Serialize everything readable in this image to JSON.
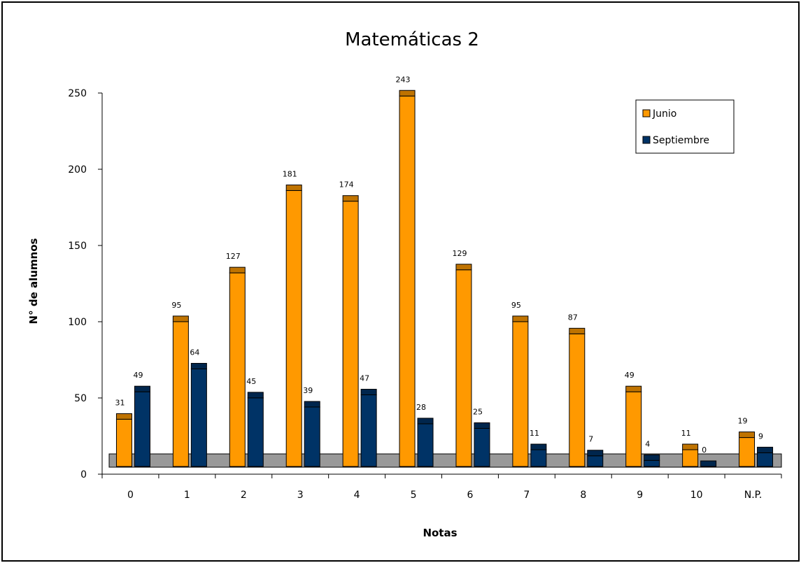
{
  "chart_data": {
    "type": "bar",
    "title": "Matemáticas 2",
    "xlabel": "Notas",
    "ylabel": "N° de alumnos",
    "categories": [
      "0",
      "1",
      "2",
      "3",
      "4",
      "5",
      "6",
      "7",
      "8",
      "9",
      "10",
      "N.P."
    ],
    "series": [
      {
        "name": "Junio",
        "color": "#FF9900",
        "values": [
          31,
          95,
          127,
          181,
          174,
          243,
          129,
          95,
          87,
          49,
          11,
          19
        ]
      },
      {
        "name": "Septiembre",
        "color": "#003366",
        "values": [
          49,
          64,
          45,
          39,
          47,
          28,
          25,
          11,
          7,
          4,
          0,
          9
        ]
      }
    ],
    "ylim": [
      0,
      250
    ],
    "yticks": [
      0,
      50,
      100,
      150,
      200,
      250
    ],
    "grid": false,
    "legend_position": "top-right",
    "floor_color": "#999999"
  }
}
